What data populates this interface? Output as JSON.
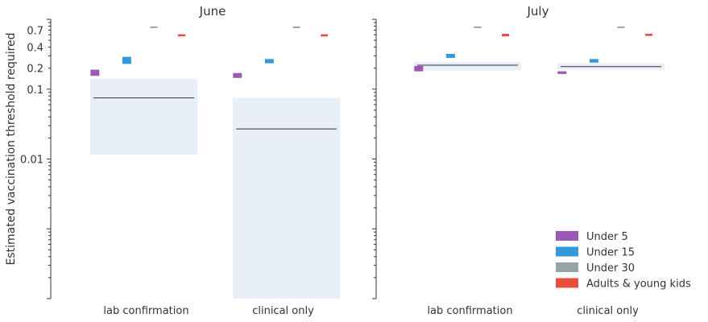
{
  "chart_data": {
    "type": "bar",
    "ylabel": "Estimated vaccination threshold required",
    "yscale": "log",
    "ylim": [
      0.0001,
      1.0
    ],
    "ytick_labels": [
      {
        "value": 0.7,
        "label": "0.7"
      },
      {
        "value": 0.4,
        "label": "0.4"
      },
      {
        "value": 0.2,
        "label": "0.2"
      },
      {
        "value": 0.1,
        "label": "0.1"
      },
      {
        "value": 0.01,
        "label": "0.01"
      }
    ],
    "categories": [
      "lab confirmation",
      "clinical only"
    ],
    "legend": {
      "placement": "lower-right",
      "entries": [
        {
          "name": "Under 5",
          "color": "#9b59b6"
        },
        {
          "name": "Under 15",
          "color": "#3498db"
        },
        {
          "name": "Under 30",
          "color": "#95a5a6"
        },
        {
          "name": "Adults & young kids",
          "color": "#e74c3c"
        }
      ]
    },
    "band_color": "#e8eff8",
    "panels": [
      {
        "title": "June",
        "groups": [
          {
            "category": "lab confirmation",
            "band": {
              "low": 0.0115,
              "high": 0.14,
              "median": 0.075
            },
            "points": [
              {
                "series": "Under 5",
                "low": 0.155,
                "high": 0.19
              },
              {
                "series": "Under 15",
                "low": 0.23,
                "high": 0.29
              },
              {
                "series": "Under 30",
                "low": 0.75,
                "high": 0.79
              },
              {
                "series": "Adults & young kids",
                "low": 0.57,
                "high": 0.61
              }
            ]
          },
          {
            "category": "clinical only",
            "band": {
              "low": 0.0001,
              "high": 0.075,
              "median": 0.027
            },
            "points": [
              {
                "series": "Under 5",
                "low": 0.145,
                "high": 0.17
              },
              {
                "series": "Under 15",
                "low": 0.235,
                "high": 0.27
              },
              {
                "series": "Under 30",
                "low": 0.75,
                "high": 0.79
              },
              {
                "series": "Adults & young kids",
                "low": 0.57,
                "high": 0.61
              }
            ]
          }
        ]
      },
      {
        "title": "July",
        "groups": [
          {
            "category": "lab confirmation",
            "band": {
              "low": 0.185,
              "high": 0.245,
              "median": 0.22
            },
            "points": [
              {
                "series": "Under 5",
                "low": 0.18,
                "high": 0.215
              },
              {
                "series": "Under 15",
                "low": 0.28,
                "high": 0.32
              },
              {
                "series": "Under 30",
                "low": 0.75,
                "high": 0.79
              },
              {
                "series": "Adults & young kids",
                "low": 0.57,
                "high": 0.62
              }
            ]
          },
          {
            "category": "clinical only",
            "band": {
              "low": 0.19,
              "high": 0.235,
              "median": 0.21
            },
            "points": [
              {
                "series": "Under 5",
                "low": 0.165,
                "high": 0.18
              },
              {
                "series": "Under 15",
                "low": 0.24,
                "high": 0.27
              },
              {
                "series": "Under 30",
                "low": 0.75,
                "high": 0.79
              },
              {
                "series": "Adults & young kids",
                "low": 0.58,
                "high": 0.62
              }
            ]
          }
        ]
      }
    ]
  }
}
